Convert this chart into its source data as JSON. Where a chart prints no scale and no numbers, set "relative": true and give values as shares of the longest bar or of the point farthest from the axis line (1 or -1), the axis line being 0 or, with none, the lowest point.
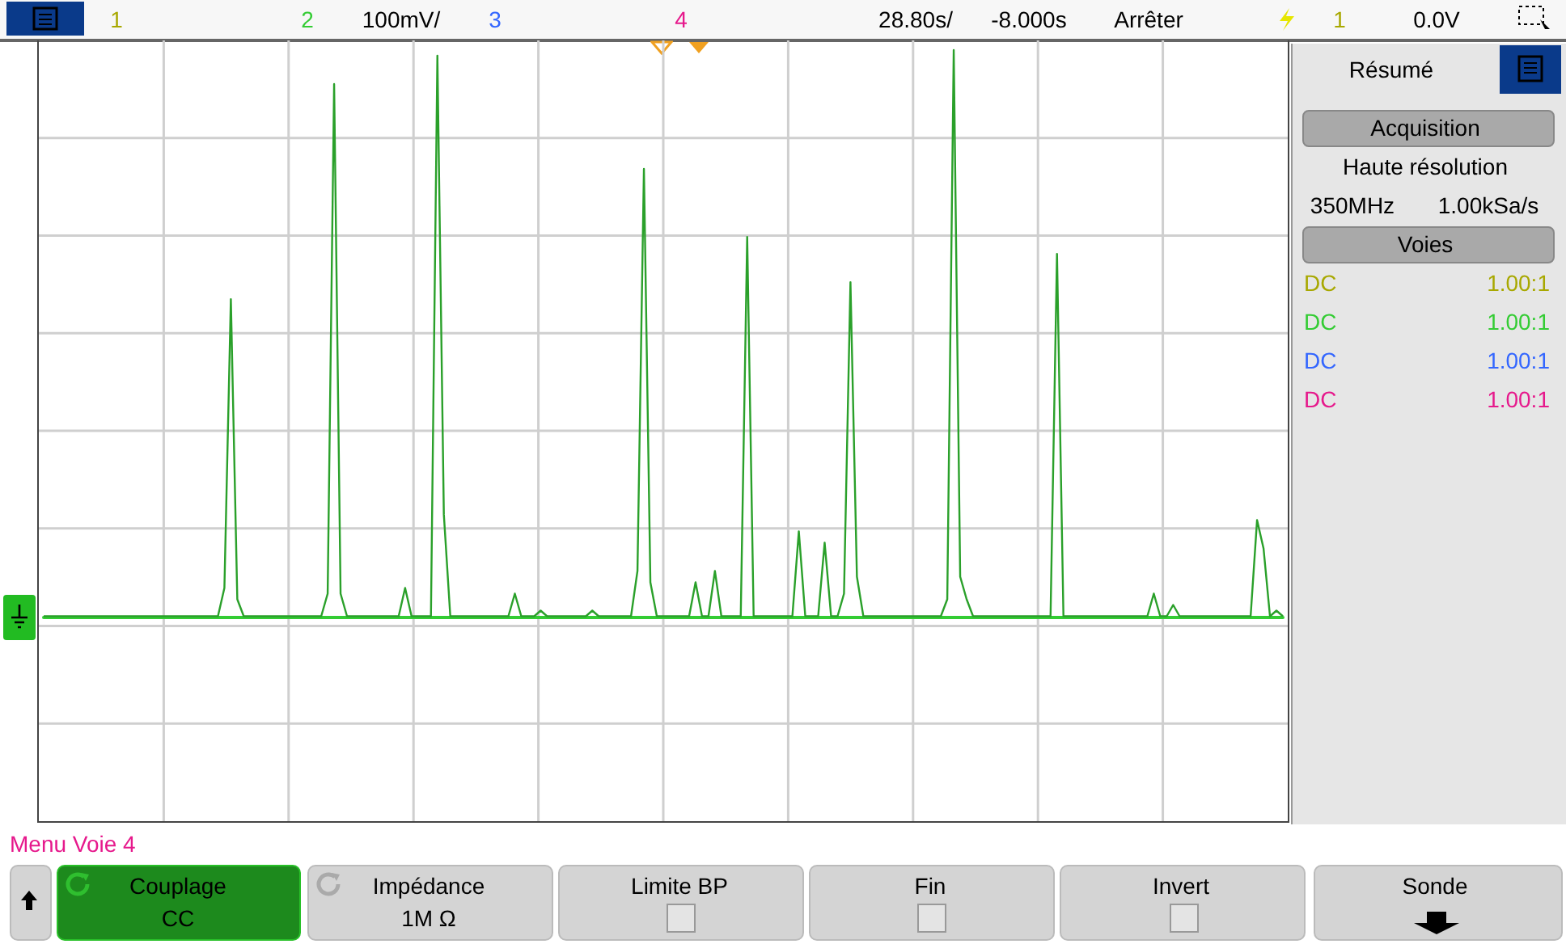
{
  "chart_data": {
    "type": "line",
    "relative": true,
    "grid": true,
    "line_style": "solid",
    "categories": [
      null,
      null,
      null,
      null,
      null,
      null,
      null,
      null,
      null,
      null,
      null,
      null,
      null,
      null,
      null,
      null,
      null,
      null,
      null,
      null,
      null,
      null,
      null,
      null,
      null,
      null,
      null,
      null,
      null,
      null,
      null,
      null,
      null,
      null,
      null,
      null,
      null,
      null,
      null,
      null,
      null,
      null,
      null,
      null,
      null,
      null,
      null,
      null,
      null,
      null,
      null,
      null,
      null,
      null,
      null,
      null,
      null,
      null,
      null,
      null,
      null,
      null,
      null,
      null,
      null,
      null,
      null,
      null,
      null,
      null,
      null,
      null,
      null,
      null,
      null,
      null,
      null,
      null,
      null,
      null,
      null,
      null,
      null,
      null,
      null,
      null,
      null,
      null,
      null,
      null,
      null,
      null,
      null,
      null,
      null,
      null,
      null,
      null,
      null,
      null,
      null,
      null,
      null,
      null,
      null,
      null,
      null,
      null,
      null,
      null,
      null,
      null,
      null,
      null,
      null,
      null,
      null,
      null,
      null,
      null,
      null,
      null,
      null,
      null,
      null,
      null,
      null,
      null,
      null,
      null,
      null,
      null,
      null,
      null,
      null,
      null,
      null,
      null,
      null,
      null,
      null,
      null,
      null,
      null,
      null,
      null,
      null,
      null,
      null,
      null,
      null,
      null,
      null,
      null,
      null,
      null,
      null,
      null,
      null,
      null,
      null,
      null,
      null,
      null,
      null,
      null,
      null,
      null,
      null,
      null,
      null,
      null,
      null,
      null,
      null,
      null,
      null,
      null,
      null,
      null,
      null,
      null,
      null,
      null,
      null,
      null,
      null,
      null,
      null,
      null,
      null,
      null,
      null
    ],
    "series": [
      {
        "color": "#2aa02a",
        "values": [
          0,
          0,
          0,
          0,
          0,
          0,
          0,
          0,
          0,
          0,
          0,
          0,
          0,
          0,
          0,
          0,
          0,
          0,
          0,
          0,
          0,
          0,
          0,
          0,
          0,
          0,
          0,
          0,
          0.05,
          0.56,
          0.03,
          0,
          0,
          0,
          0,
          0,
          0,
          0,
          0,
          0,
          0,
          0,
          0,
          0,
          0.04,
          0.94,
          0.04,
          0,
          0,
          0,
          0,
          0,
          0,
          0,
          0,
          0,
          0.05,
          0,
          0,
          0,
          0,
          0.99,
          0.18,
          0,
          0,
          0,
          0,
          0,
          0,
          0,
          0,
          0,
          0,
          0.04,
          0,
          0,
          0,
          0.01,
          0,
          0,
          0,
          0,
          0,
          0,
          0,
          0.01,
          0,
          0,
          0,
          0,
          0,
          0,
          0.08,
          0.79,
          0.06,
          0,
          0,
          0,
          0,
          0,
          0,
          0.06,
          0,
          0,
          0.08,
          0,
          0,
          0,
          0,
          0.67,
          0,
          0,
          0,
          0,
          0,
          0,
          0,
          0.15,
          0,
          0,
          0,
          0.13,
          0,
          0,
          0.04,
          0.59,
          0.07,
          0,
          0,
          0,
          0,
          0,
          0,
          0,
          0,
          0,
          0,
          0,
          0,
          0,
          0.03,
          1,
          0.07,
          0.03,
          0,
          0,
          0,
          0,
          0,
          0,
          0,
          0,
          0,
          0,
          0,
          0,
          0,
          0.64,
          0,
          0,
          0,
          0,
          0,
          0,
          0,
          0,
          0,
          0,
          0,
          0,
          0,
          0,
          0.04,
          0,
          0,
          0.02,
          0,
          0,
          0,
          0,
          0,
          0,
          0,
          0,
          0,
          0,
          0,
          0,
          0.17,
          0.12,
          0,
          0.01,
          0
        ]
      }
    ],
    "annotations": [
      "1",
      "2",
      "100mV/",
      "3",
      "4",
      "28.80s/",
      "-8.000s",
      "Arrêter",
      "1",
      "0.0V",
      "Résumé",
      "Acquisition",
      "Haute résolution",
      "350MHz",
      "1.00kSa/s",
      "Voies",
      "DC",
      "1.00:1",
      "DC",
      "1.00:1",
      "DC",
      "1.00:1",
      "DC",
      "1.00:1",
      "Menu Voie 4",
      "Couplage",
      "CC",
      "Impédance",
      "1M Ω",
      "Limite BP",
      "Fin",
      "Invert",
      "Sonde"
    ]
  }
}
